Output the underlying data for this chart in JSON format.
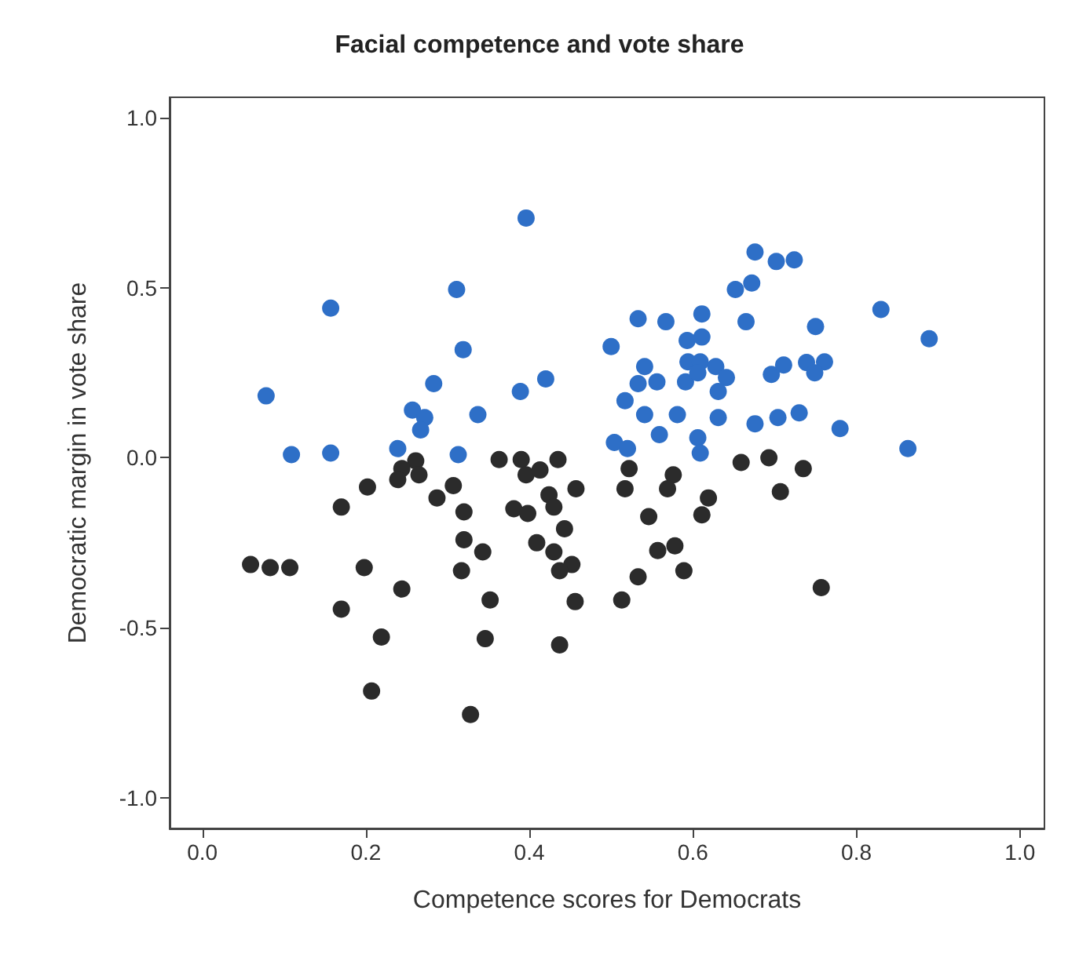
{
  "chart_data": {
    "type": "scatter",
    "title": "Facial competence and vote share",
    "xlabel": "Competence scores for Democrats",
    "ylabel": "Democratic margin in vote share",
    "xlim": [
      -0.04,
      1.03
    ],
    "ylim": [
      -1.09,
      1.06
    ],
    "xticks": [
      {
        "value": 0,
        "label": "0.0"
      },
      {
        "value": 0.2,
        "label": "0.2"
      },
      {
        "value": 0.4,
        "label": "0.4"
      },
      {
        "value": 0.6,
        "label": "0.6"
      },
      {
        "value": 0.8,
        "label": "0.8"
      },
      {
        "value": 1,
        "label": "1.0"
      }
    ],
    "yticks": [
      {
        "value": -1,
        "label": "-1.0"
      },
      {
        "value": -0.5,
        "label": "-0.5"
      },
      {
        "value": 0,
        "label": "0.0"
      },
      {
        "value": 0.5,
        "label": "0.5"
      },
      {
        "value": 1,
        "label": "1.0"
      }
    ],
    "grid": false,
    "marker": "circle",
    "series": [
      {
        "color": "#2e6fc7",
        "x": [
          0.396,
          0.311,
          0.157,
          0.319,
          0.5,
          0.283,
          0.42,
          0.389,
          0.078,
          0.257,
          0.272,
          0.267,
          0.337,
          0.109,
          0.157,
          0.239,
          0.313,
          0.504,
          0.676,
          0.702,
          0.724,
          0.652,
          0.672,
          0.533,
          0.567,
          0.611,
          0.665,
          0.83,
          0.75,
          0.889,
          0.593,
          0.611,
          0.541,
          0.594,
          0.609,
          0.628,
          0.641,
          0.696,
          0.711,
          0.739,
          0.761,
          0.749,
          0.533,
          0.556,
          0.591,
          0.606,
          0.631,
          0.517,
          0.541,
          0.581,
          0.631,
          0.676,
          0.704,
          0.73,
          0.78,
          0.559,
          0.606,
          0.609,
          0.52,
          0.863
        ],
        "values": [
          0.705,
          0.495,
          0.44,
          0.318,
          0.327,
          0.218,
          0.232,
          0.195,
          0.182,
          0.14,
          0.118,
          0.082,
          0.127,
          0.009,
          0.014,
          0.027,
          0.009,
          0.045,
          0.605,
          0.577,
          0.582,
          0.495,
          0.514,
          0.409,
          0.4,
          0.423,
          0.4,
          0.436,
          0.386,
          0.35,
          0.345,
          0.355,
          0.268,
          0.282,
          0.282,
          0.268,
          0.236,
          0.245,
          0.273,
          0.28,
          0.282,
          0.25,
          0.218,
          0.223,
          0.223,
          0.25,
          0.195,
          0.168,
          0.127,
          0.127,
          0.118,
          0.1,
          0.118,
          0.132,
          0.086,
          0.068,
          0.059,
          0.014,
          0.027,
          0.027
        ]
      },
      {
        "color": "#2b2b2b",
        "x": [
          0.363,
          0.39,
          0.435,
          0.396,
          0.413,
          0.261,
          0.244,
          0.265,
          0.239,
          0.202,
          0.307,
          0.287,
          0.17,
          0.32,
          0.381,
          0.398,
          0.424,
          0.43,
          0.457,
          0.443,
          0.409,
          0.43,
          0.452,
          0.437,
          0.32,
          0.343,
          0.317,
          0.059,
          0.083,
          0.107,
          0.198,
          0.244,
          0.17,
          0.352,
          0.456,
          0.219,
          0.346,
          0.437,
          0.207,
          0.328,
          0.659,
          0.693,
          0.735,
          0.522,
          0.517,
          0.576,
          0.569,
          0.707,
          0.619,
          0.611,
          0.546,
          0.557,
          0.578,
          0.589,
          0.533,
          0.513,
          0.757
        ],
        "values": [
          -0.005,
          -0.005,
          -0.005,
          -0.05,
          -0.036,
          -0.009,
          -0.032,
          -0.05,
          -0.064,
          -0.086,
          -0.082,
          -0.118,
          -0.145,
          -0.159,
          -0.15,
          -0.164,
          -0.109,
          -0.145,
          -0.091,
          -0.209,
          -0.25,
          -0.277,
          -0.314,
          -0.332,
          -0.241,
          -0.277,
          -0.332,
          -0.314,
          -0.323,
          -0.323,
          -0.323,
          -0.386,
          -0.445,
          -0.418,
          -0.423,
          -0.527,
          -0.532,
          -0.55,
          -0.686,
          -0.755,
          -0.014,
          0,
          -0.032,
          -0.032,
          -0.091,
          -0.05,
          -0.091,
          -0.1,
          -0.118,
          -0.168,
          -0.173,
          -0.273,
          -0.259,
          -0.332,
          -0.35,
          -0.418,
          -0.382
        ]
      }
    ]
  }
}
